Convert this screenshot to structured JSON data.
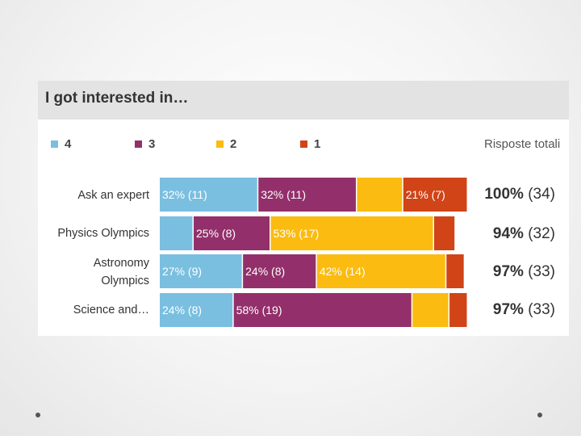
{
  "chart_data": {
    "type": "bar",
    "stacked": true,
    "orientation": "horizontal",
    "title": "I got interested in…",
    "legend_placement": "top",
    "totals_header": "Risposte totali",
    "categories": [
      "Ask an expert",
      "Physics Olympics",
      "Astronomy Olympics",
      "Science and…"
    ],
    "series": [
      {
        "name": "4",
        "color": "#7abfe0",
        "values": [
          32,
          11,
          27,
          24
        ],
        "labels": [
          "32% (11)",
          "",
          "27% (9)",
          "24% (8)"
        ]
      },
      {
        "name": "3",
        "color": "#93306b",
        "values": [
          32,
          25,
          24,
          58
        ],
        "labels": [
          "32% (11)",
          "25% (8)",
          "24% (8)",
          "58% (19)"
        ]
      },
      {
        "name": "2",
        "color": "#fbbb10",
        "values": [
          15,
          53,
          42,
          12
        ],
        "labels": [
          "",
          "53% (17)",
          "42% (14)",
          ""
        ]
      },
      {
        "name": "1",
        "color": "#d04418",
        "values": [
          21,
          7,
          6,
          6
        ],
        "labels": [
          "21% (7)",
          "",
          "",
          ""
        ]
      }
    ],
    "totals": [
      {
        "pct": "100%",
        "count": "(34)"
      },
      {
        "pct": "94%",
        "count": "(32)"
      },
      {
        "pct": "97%",
        "count": "(33)"
      },
      {
        "pct": "97%",
        "count": "(33)"
      }
    ],
    "xlim": [
      0,
      100
    ],
    "grid": false
  }
}
